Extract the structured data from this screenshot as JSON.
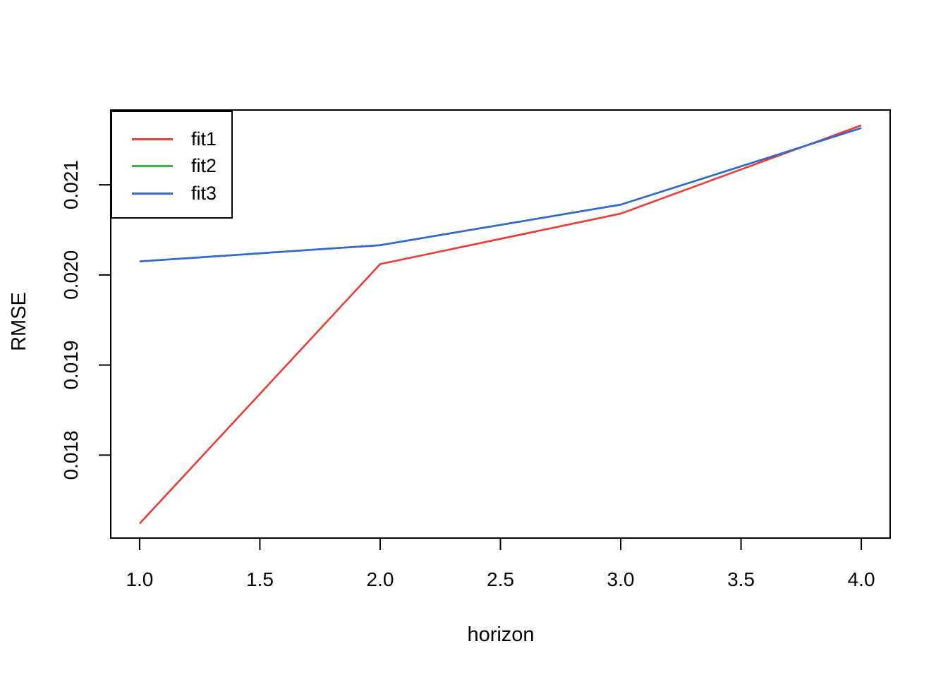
{
  "chart_data": {
    "type": "line",
    "title": "",
    "xlabel": "horizon",
    "ylabel": "RMSE",
    "x": [
      1,
      2,
      3,
      4
    ],
    "series": [
      {
        "name": "fit1",
        "color": "#ED3B33",
        "values": [
          0.01724,
          0.02012,
          0.02068,
          0.02166
        ]
      },
      {
        "name": "fit2",
        "color": "#3BB54A",
        "values": [
          0.02015,
          0.02033,
          0.02078,
          0.02163
        ]
      },
      {
        "name": "fit3",
        "color": "#3168D8",
        "values": [
          0.02015,
          0.02033,
          0.02078,
          0.02163
        ]
      }
    ],
    "xlim": [
      0.88,
      4.12
    ],
    "ylim": [
      0.01708,
      0.02183
    ],
    "x_ticks": [
      {
        "value": 1.0,
        "label": "1.0"
      },
      {
        "value": 1.5,
        "label": "1.5"
      },
      {
        "value": 2.0,
        "label": "2.0"
      },
      {
        "value": 2.5,
        "label": "2.5"
      },
      {
        "value": 3.0,
        "label": "3.0"
      },
      {
        "value": 3.5,
        "label": "3.5"
      },
      {
        "value": 4.0,
        "label": "4.0"
      }
    ],
    "y_ticks": [
      {
        "value": 0.018,
        "label": "0.018"
      },
      {
        "value": 0.019,
        "label": "0.019"
      },
      {
        "value": 0.02,
        "label": "0.020"
      },
      {
        "value": 0.021,
        "label": "0.021"
      }
    ],
    "legend": {
      "position": "topleft",
      "entries": [
        "fit1",
        "fit2",
        "fit3"
      ]
    },
    "grid": false,
    "frame_color": "#000000",
    "text_color": "#000000",
    "background": "#FFFFFF"
  }
}
